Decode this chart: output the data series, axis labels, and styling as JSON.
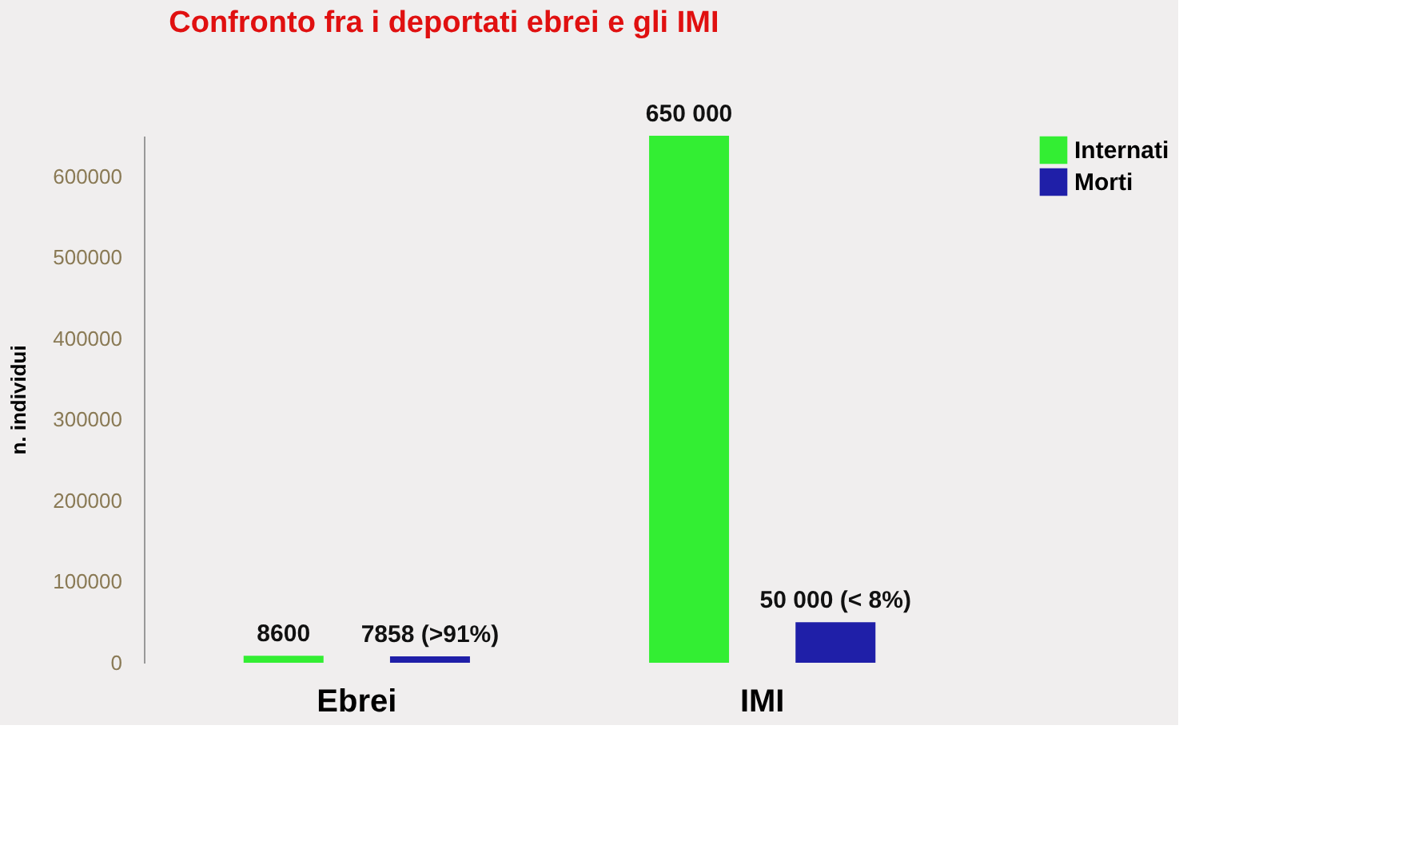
{
  "chart_data": {
    "type": "bar",
    "title": "Confronto fra i deportati ebrei e gli IMI",
    "ylabel": "n. individui",
    "categories": [
      "Ebrei",
      "IMI"
    ],
    "series": [
      {
        "name": "Internati",
        "color": "#33ee33",
        "values": [
          8600,
          650000
        ],
        "value_labels": [
          "8600",
          "650 000"
        ]
      },
      {
        "name": "Morti",
        "color": "#1f1fa8",
        "values": [
          7858,
          50000
        ],
        "value_labels": [
          "7858 (>91%)",
          "50 000 (< 8%)"
        ]
      }
    ],
    "ylim": [
      0,
      650000
    ],
    "yticks": [
      0,
      100000,
      200000,
      300000,
      400000,
      500000,
      600000
    ],
    "grid": false,
    "legend": "top right"
  }
}
